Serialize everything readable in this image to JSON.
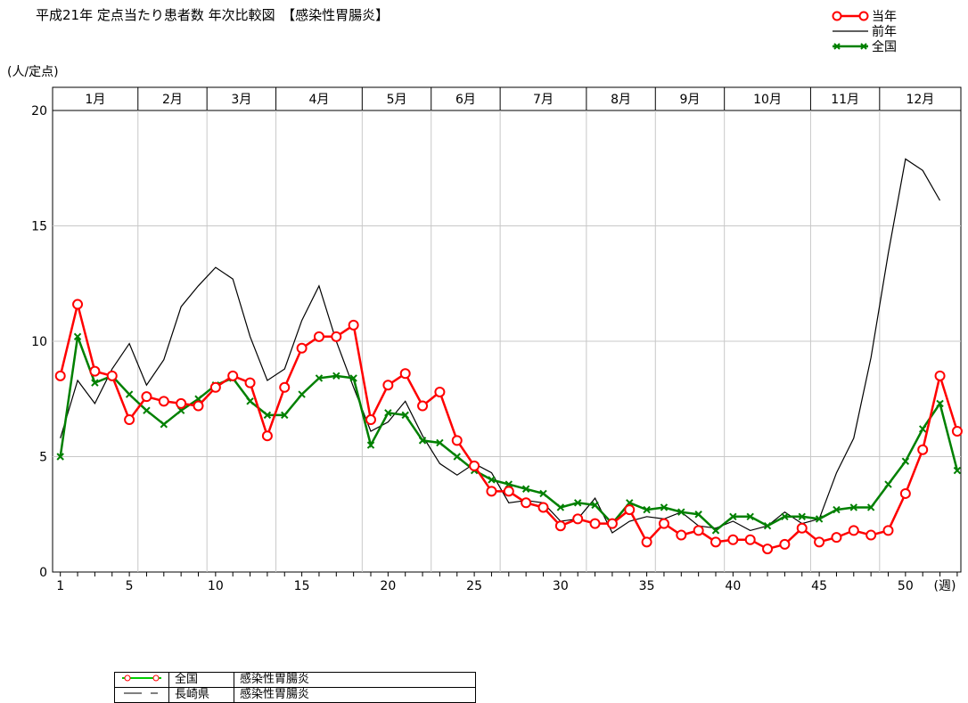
{
  "title": "平成21年 定点当たり患者数 年次比較図　【感染性胃腸炎】",
  "unit_label": "(人/定点)",
  "legend": [
    {
      "name": "当年",
      "color": "#ff0000",
      "marker": "circle"
    },
    {
      "name": "前年",
      "color": "#000000",
      "marker": "none"
    },
    {
      "name": "全国",
      "color": "#008000",
      "marker": "x"
    }
  ],
  "bottom_legend": [
    {
      "region": "全国",
      "disease": "感染性胃腸炎"
    },
    {
      "region": "長崎県",
      "disease": "感染性胃腸炎"
    }
  ],
  "chart_data": {
    "type": "line",
    "xlabel": "(週)",
    "ylabel": "(人/定点)",
    "ylim": [
      0,
      20
    ],
    "xlim": [
      1,
      53
    ],
    "yticks": [
      0,
      5,
      10,
      15,
      20
    ],
    "xticks": [
      1,
      5,
      10,
      15,
      20,
      25,
      30,
      35,
      40,
      45,
      50
    ],
    "grid": true,
    "legend_position": "top-right",
    "months": [
      {
        "label": "1月",
        "start": 0.5,
        "end": 5.5
      },
      {
        "label": "2月",
        "start": 5.5,
        "end": 9.5
      },
      {
        "label": "3月",
        "start": 9.5,
        "end": 13.5
      },
      {
        "label": "4月",
        "start": 13.5,
        "end": 18.5
      },
      {
        "label": "5月",
        "start": 18.5,
        "end": 22.5
      },
      {
        "label": "6月",
        "start": 22.5,
        "end": 26.5
      },
      {
        "label": "7月",
        "start": 26.5,
        "end": 31.5
      },
      {
        "label": "8月",
        "start": 31.5,
        "end": 35.5
      },
      {
        "label": "9月",
        "start": 35.5,
        "end": 39.5
      },
      {
        "label": "10月",
        "start": 39.5,
        "end": 44.5
      },
      {
        "label": "11月",
        "start": 44.5,
        "end": 48.5
      },
      {
        "label": "12月",
        "start": 48.5,
        "end": 53.5
      }
    ],
    "series": [
      {
        "name": "当年",
        "color": "#ff0000",
        "marker": "circle",
        "x": [
          1,
          2,
          3,
          4,
          5,
          6,
          7,
          8,
          9,
          10,
          11,
          12,
          13,
          14,
          15,
          16,
          17,
          18,
          19,
          20,
          21,
          22,
          23,
          24,
          25,
          26,
          27,
          28,
          29,
          30,
          31,
          32,
          33,
          34,
          35,
          36,
          37,
          38,
          39,
          40,
          41,
          42,
          43,
          44,
          45,
          46,
          47,
          48,
          49,
          50,
          51,
          52,
          53
        ],
        "values": [
          8.5,
          11.6,
          8.7,
          8.5,
          6.6,
          7.6,
          7.4,
          7.3,
          7.2,
          8.0,
          8.5,
          8.2,
          5.9,
          8.0,
          9.7,
          10.2,
          10.2,
          10.7,
          6.6,
          8.1,
          8.6,
          7.2,
          7.8,
          5.7,
          4.6,
          3.5,
          3.5,
          3.0,
          2.8,
          2.0,
          2.3,
          2.1,
          2.1,
          2.7,
          1.3,
          2.1,
          1.6,
          1.8,
          1.3,
          1.4,
          1.4,
          1.0,
          1.2,
          1.9,
          1.3,
          1.5,
          1.8,
          1.6,
          1.8,
          3.4,
          5.3,
          8.5,
          6.1
        ]
      },
      {
        "name": "前年",
        "color": "#000000",
        "marker": "none",
        "x": [
          1,
          2,
          3,
          4,
          5,
          6,
          7,
          8,
          9,
          10,
          11,
          12,
          13,
          14,
          15,
          16,
          17,
          18,
          19,
          20,
          21,
          22,
          23,
          24,
          25,
          26,
          27,
          28,
          29,
          30,
          31,
          32,
          33,
          34,
          35,
          36,
          37,
          38,
          39,
          40,
          41,
          42,
          43,
          44,
          45,
          46,
          47,
          48,
          49,
          50,
          51,
          52
        ],
        "values": [
          5.8,
          8.3,
          7.3,
          8.8,
          9.9,
          8.1,
          9.2,
          11.5,
          12.4,
          13.2,
          12.7,
          10.2,
          8.3,
          8.8,
          10.9,
          12.4,
          10.0,
          8.0,
          6.1,
          6.5,
          7.4,
          5.9,
          4.7,
          4.2,
          4.7,
          4.3,
          3.0,
          3.1,
          3.0,
          2.2,
          2.3,
          3.2,
          1.7,
          2.2,
          2.4,
          2.3,
          2.6,
          2.0,
          1.9,
          2.2,
          1.8,
          2.0,
          2.6,
          2.1,
          2.3,
          4.3,
          5.8,
          9.3,
          13.8,
          17.9,
          17.4,
          16.1
        ]
      },
      {
        "name": "全国",
        "color": "#008000",
        "marker": "x",
        "x": [
          1,
          2,
          3,
          4,
          5,
          6,
          7,
          8,
          9,
          10,
          11,
          12,
          13,
          14,
          15,
          16,
          17,
          18,
          19,
          20,
          21,
          22,
          23,
          24,
          25,
          26,
          27,
          28,
          29,
          30,
          31,
          32,
          33,
          34,
          35,
          36,
          37,
          38,
          39,
          40,
          41,
          42,
          43,
          44,
          45,
          46,
          47,
          48,
          49,
          50,
          51,
          52,
          53
        ],
        "values": [
          5.0,
          10.2,
          8.2,
          8.5,
          7.7,
          7.0,
          6.4,
          7.0,
          7.5,
          8.1,
          8.4,
          7.4,
          6.8,
          6.8,
          7.7,
          8.4,
          8.5,
          8.4,
          5.5,
          6.9,
          6.8,
          5.7,
          5.6,
          5.0,
          4.4,
          4.0,
          3.8,
          3.6,
          3.4,
          2.8,
          3.0,
          2.9,
          2.1,
          3.0,
          2.7,
          2.8,
          2.6,
          2.5,
          1.8,
          2.4,
          2.4,
          2.0,
          2.4,
          2.4,
          2.3,
          2.7,
          2.8,
          2.8,
          3.8,
          4.8,
          6.2,
          7.3,
          4.4
        ]
      }
    ]
  }
}
